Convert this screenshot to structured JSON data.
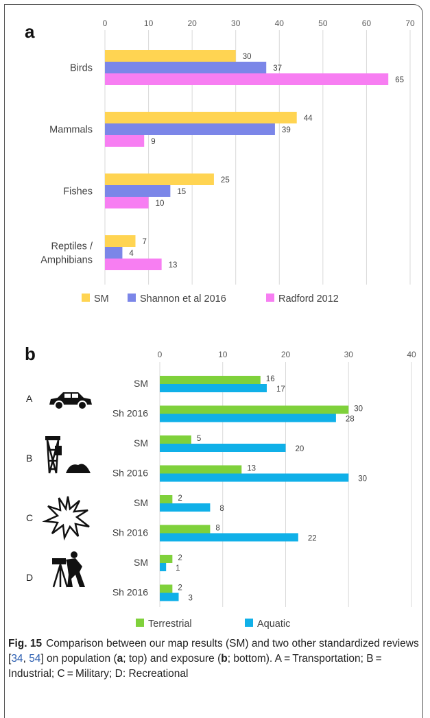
{
  "chart_data": [
    {
      "type": "bar",
      "orientation": "horizontal",
      "panel": "a",
      "categories": [
        "Birds",
        "Mammals",
        "Fishes",
        "Reptiles / Amphibians"
      ],
      "category_lines": [
        [
          "Birds"
        ],
        [
          "Mammals"
        ],
        [
          "Fishes"
        ],
        [
          "Reptiles /",
          "Amphibians"
        ]
      ],
      "series": [
        {
          "name": "SM",
          "color": "#ffd452",
          "values": [
            30,
            44,
            25,
            7
          ]
        },
        {
          "name": "Shannon et al 2016",
          "color": "#7b86e8",
          "values": [
            37,
            39,
            15,
            4
          ]
        },
        {
          "name": "Radford 2012",
          "color": "#f77ef2",
          "values": [
            65,
            9,
            10,
            13
          ]
        }
      ],
      "xlim": [
        0,
        70
      ],
      "xticks": [
        "0",
        "10",
        "20",
        "30",
        "40",
        "50",
        "60",
        "70"
      ],
      "grid": true,
      "legend": "bottom"
    },
    {
      "type": "bar",
      "orientation": "horizontal",
      "panel": "b",
      "groups": [
        {
          "letter": "A",
          "icon": "car-icon",
          "rows": [
            "SM",
            "Sh 2016"
          ]
        },
        {
          "letter": "B",
          "icon": "mine-tower-icon",
          "rows": [
            "SM",
            "Sh 2016"
          ]
        },
        {
          "letter": "C",
          "icon": "explosion-icon",
          "rows": [
            "SM",
            "Sh 2016"
          ]
        },
        {
          "letter": "D",
          "icon": "camera-tripod-icon",
          "rows": [
            "SM",
            "Sh 2016"
          ]
        }
      ],
      "series": [
        {
          "name": "Terrestrial",
          "color": "#7fd13b",
          "values": [
            16,
            30,
            5,
            13,
            2,
            8,
            2,
            2
          ]
        },
        {
          "name": "Aquatic",
          "color": "#10b0e8",
          "values": [
            17,
            28,
            20,
            30,
            8,
            22,
            1,
            3
          ]
        }
      ],
      "xlim": [
        0,
        40
      ],
      "xticks": [
        "0",
        "10",
        "20",
        "30",
        "40"
      ],
      "grid": true,
      "legend": "bottom"
    }
  ],
  "caption": {
    "fig_label": "Fig. 15",
    "text_1": "Comparison between our map results (SM) and two other standardized reviews [",
    "ref_1": "34",
    "sep": ", ",
    "ref_2": "54",
    "text_2": "] on population (",
    "a": "a",
    "text_3": "; top) and exposure (",
    "b": "b",
    "text_4": "; bottom). A = Transportation; B = Industrial; C = Military; D: Recreational"
  }
}
